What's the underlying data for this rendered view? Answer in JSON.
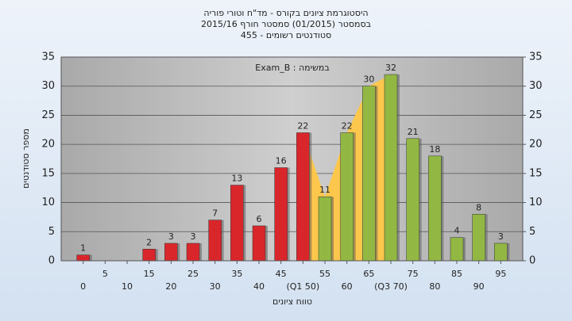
{
  "chart_data": {
    "type": "bar",
    "title": [
      "היסטוגרמת ציונים בקורס - מד\"ח וטורי פוריה",
      "בסמסטר  (01/2015)  סמסטר חורף 2015/16",
      "סטודנטים רשומים - 455"
    ],
    "annotation": "במשימה : Exam_B",
    "y_label": "מספר סטודנטים",
    "x_label": "טווח ציונים",
    "x": [
      0,
      5,
      10,
      15,
      20,
      25,
      30,
      35,
      40,
      45,
      50,
      55,
      60,
      65,
      70,
      75,
      80,
      85,
      90,
      95
    ],
    "values": [
      1,
      0,
      0,
      2,
      3,
      3,
      7,
      13,
      6,
      16,
      22,
      11,
      22,
      30,
      32,
      21,
      18,
      4,
      8,
      3
    ],
    "xticks": [
      0,
      5,
      10,
      15,
      20,
      25,
      30,
      35,
      40,
      45,
      {
        "value": 50,
        "label": "(Q1 50)"
      },
      55,
      60,
      65,
      {
        "value": 70,
        "label": "(Q3 70)"
      },
      75,
      80,
      85,
      90,
      95
    ],
    "xlim": [
      -5,
      100
    ],
    "ylim": [
      0,
      35
    ],
    "yticks": [
      0,
      5,
      10,
      15,
      20,
      25,
      30,
      35
    ],
    "y2lim": [
      0,
      35
    ],
    "y2ticks": [
      0,
      5,
      10,
      15,
      20,
      25,
      30,
      35
    ],
    "grid": true,
    "quartiles": {
      "q1": 50,
      "q3": 70,
      "color": "#fcc74c"
    },
    "colors": {
      "low": "#d9262b",
      "high": "#92b843"
    }
  }
}
